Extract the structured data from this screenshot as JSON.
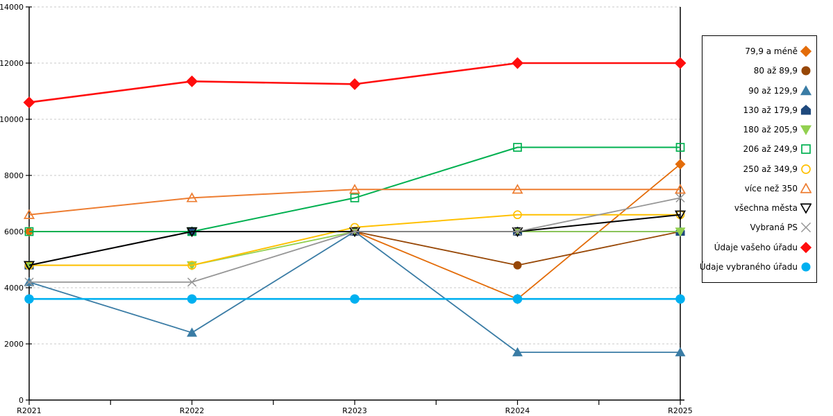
{
  "chart_data": {
    "type": "line",
    "title": "",
    "xlabel": "",
    "ylabel": "",
    "categories": [
      "R2021",
      "R2022",
      "R2023",
      "R2024",
      "R2025"
    ],
    "ylim": [
      0,
      14000
    ],
    "ytick_step": 2000,
    "ytick_labels": [
      "0",
      "2000",
      "4000",
      "6000",
      "8000",
      "10000",
      "12000",
      "14000"
    ],
    "grid": "horizontal-dashed",
    "legend_position": "right",
    "series": [
      {
        "name": "79,9 a méně",
        "color": "#E36C09",
        "marker": "diamond",
        "filled": true,
        "line_width": 1.8,
        "values": [
          6000,
          6000,
          6000,
          3600,
          8400
        ]
      },
      {
        "name": "80 až 89,9",
        "color": "#974706",
        "marker": "circle",
        "filled": true,
        "line_width": 1.8,
        "values": [
          4800,
          6000,
          6000,
          4800,
          6000
        ]
      },
      {
        "name": "90 až 129,9",
        "color": "#3A7CA5",
        "marker": "triangle-up",
        "filled": true,
        "line_width": 1.8,
        "values": [
          4200,
          2400,
          6000,
          1700,
          1700
        ]
      },
      {
        "name": "130 až 179,9",
        "color": "#1F497D",
        "marker": "pentagon",
        "filled": true,
        "line_width": 1.8,
        "values": [
          4800,
          6000,
          6000,
          6000,
          6000
        ]
      },
      {
        "name": "180 až 205,9",
        "color": "#92D050",
        "marker": "triangle-down",
        "filled": true,
        "line_width": 1.8,
        "values": [
          4800,
          4800,
          6000,
          6000,
          6000
        ]
      },
      {
        "name": "206 až 249,9",
        "color": "#00B050",
        "marker": "square",
        "filled": false,
        "line_width": 2.0,
        "values": [
          6000,
          6000,
          7200,
          9000,
          9000
        ]
      },
      {
        "name": "250 až 349,9",
        "color": "#FFC000",
        "marker": "circle",
        "filled": false,
        "line_width": 2.0,
        "values": [
          4800,
          4800,
          6150,
          6600,
          6600
        ]
      },
      {
        "name": "více než 350",
        "color": "#ED7D31",
        "marker": "triangle-up",
        "filled": false,
        "line_width": 2.0,
        "values": [
          6600,
          7200,
          7500,
          7500,
          7500
        ]
      },
      {
        "name": "všechna města",
        "color": "#000000",
        "marker": "triangle-down",
        "filled": false,
        "line_width": 2.0,
        "values": [
          4800,
          6000,
          6000,
          6000,
          6600
        ]
      },
      {
        "name": "Vybraná PS",
        "color": "#969696",
        "marker": "x",
        "filled": false,
        "line_width": 1.8,
        "values": [
          4200,
          4200,
          6000,
          6000,
          7200
        ]
      },
      {
        "name": "Údaje vašeho úřadu",
        "color": "#FF0D0D",
        "marker": "diamond",
        "filled": true,
        "line_width": 2.6,
        "values": [
          10600,
          11350,
          11250,
          12000,
          12000
        ]
      },
      {
        "name": "Údaje vybraného úřadu",
        "color": "#00B0F0",
        "marker": "circle",
        "filled": true,
        "line_width": 2.6,
        "values": [
          3600,
          3600,
          3600,
          3600,
          3600
        ]
      }
    ]
  }
}
